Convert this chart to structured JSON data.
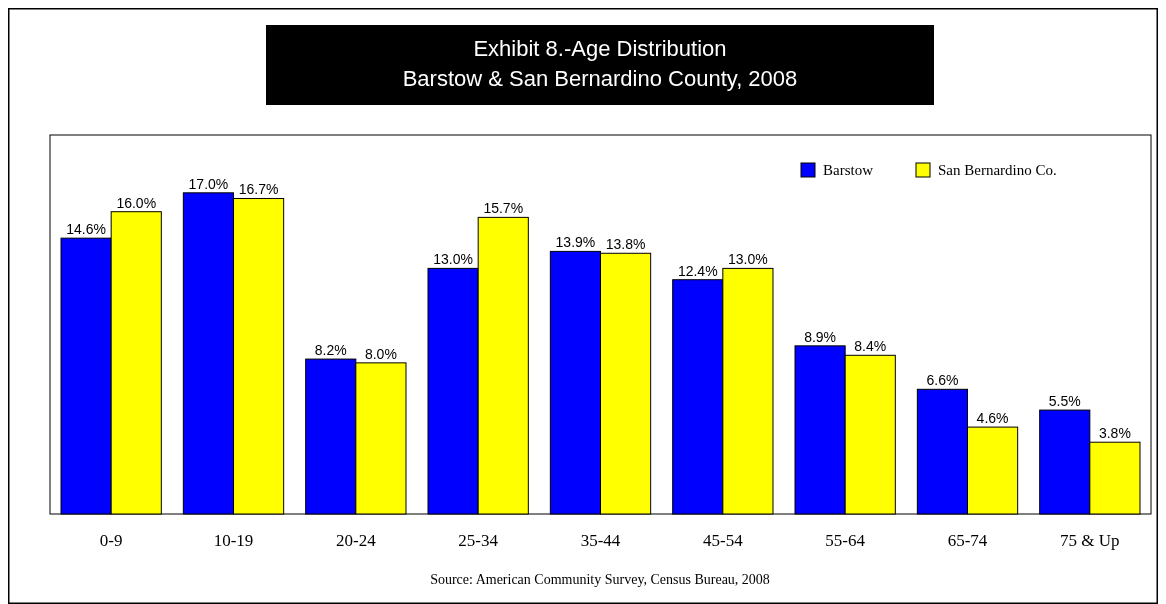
{
  "chart_data": {
    "type": "bar",
    "title": "Exhibit 8.-Age Distribution\nBarstow & San Bernardino County, 2008",
    "categories": [
      "0-9",
      "10-19",
      "20-24",
      "25-34",
      "35-44",
      "45-54",
      "55-64",
      "65-74",
      "75 & Up"
    ],
    "series": [
      {
        "name": "Barstow",
        "color": "#0000ff",
        "values": [
          14.6,
          17.0,
          8.2,
          13.0,
          13.9,
          12.4,
          8.9,
          6.6,
          5.5
        ],
        "value_labels": [
          "14.6%",
          "17.0%",
          "8.2%",
          "13.0%",
          "13.9%",
          "12.4%",
          "8.9%",
          "6.6%",
          "5.5%"
        ]
      },
      {
        "name": "San Bernardino Co.",
        "color": "#ffff00",
        "values": [
          16.0,
          16.7,
          8.0,
          15.7,
          13.8,
          13.0,
          8.4,
          4.6,
          3.8
        ],
        "value_labels": [
          "16.0%",
          "16.7%",
          "8.0%",
          "15.7%",
          "13.8%",
          "13.0%",
          "8.4%",
          "4.6%",
          "3.8%"
        ]
      }
    ],
    "tick_labels": "x",
    "legend": "top right",
    "annotations": [
      "Source: American Community Survey, Census Bureau, 2008"
    ]
  }
}
